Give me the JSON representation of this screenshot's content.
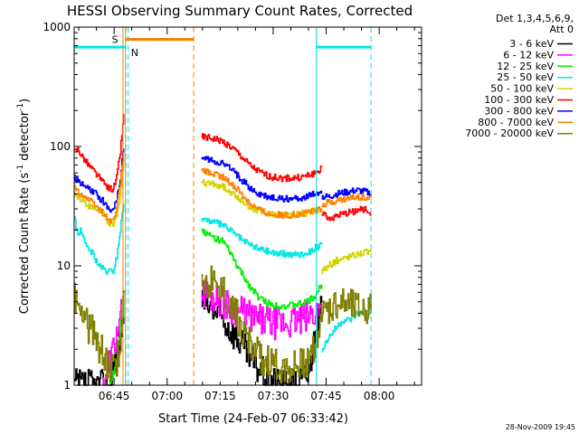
{
  "chart_data": {
    "type": "line",
    "title": "HESSI Observing Summary Count Rates, Corrected",
    "xlabel": "Start Time (24-Feb-07 06:33:42)",
    "ylabel_main": "Corrected Count Rate (s",
    "ylabel_sup1": "-1",
    "ylabel_mid": " detector",
    "ylabel_sup2": "-1",
    "ylabel_end": ")",
    "yscale": "log",
    "ylim": [
      1,
      1000
    ],
    "xlim": [
      "06:33:42",
      "08:12:00"
    ],
    "xtick_labels": [
      "06:45",
      "07:00",
      "07:15",
      "07:30",
      "07:45",
      "08:00"
    ],
    "xtick_minutes": [
      11.3,
      26.3,
      41.3,
      56.3,
      71.3,
      86.3
    ],
    "ytick_labels": [
      "1",
      "10",
      "100",
      "1000"
    ],
    "ytick_values": [
      1,
      10,
      100,
      1000
    ],
    "grid": false,
    "legend_position": "right",
    "legend_header": [
      "Det 1,3,4,5,6,9,",
      "Att 0"
    ],
    "footer_stamp": "28-Nov-2009 19:45",
    "annotations": {
      "saa_label": "S",
      "night_label": "N"
    },
    "bars": [
      {
        "label": "S",
        "start_min": 0.0,
        "end_min": 14.5,
        "level": 680,
        "color": "#00e6e6"
      },
      {
        "label": "S",
        "start_min": 14.5,
        "end_min": 34.0,
        "level": 790,
        "color": "#ff7f00"
      },
      {
        "label": "N",
        "start_min": 68.5,
        "end_min": 84.0,
        "level": 680,
        "color": "#00e6e6"
      }
    ],
    "markers": [
      {
        "minute": 13.8,
        "style": "solid",
        "color": "#ff7f00"
      },
      {
        "minute": 14.6,
        "style": "dashed",
        "color": "#ff7f00"
      },
      {
        "minute": 14.5,
        "style": "solid",
        "color": "#00e6e6"
      },
      {
        "minute": 15.3,
        "style": "dashed",
        "color": "#00e6e6"
      },
      {
        "minute": 33.8,
        "style": "dashed",
        "color": "#ff7f00"
      },
      {
        "minute": 68.5,
        "style": "solid",
        "color": "#00e6e6"
      },
      {
        "minute": 84.0,
        "style": "dashed",
        "color": "#00e6e6"
      }
    ],
    "series": [
      {
        "name": "3 - 6 keV",
        "color": "#000000",
        "segments": [
          {
            "x": [
              0,
              5,
              10,
              13,
              14
            ],
            "y": [
              1,
              1,
              1,
              2.5,
              4.5
            ]
          },
          {
            "x": [
              36,
              38,
              42,
              46,
              50,
              54,
              58,
              62,
              66,
              68,
              70
            ],
            "y": [
              5,
              4.5,
              3.5,
              2.5,
              1.6,
              1.2,
              1,
              1,
              1.2,
              2.5,
              4.5
            ]
          }
        ]
      },
      {
        "name": "6 - 12 keV",
        "color": "#ff00ff",
        "segments": [
          {
            "x": [
              8,
              11,
              13,
              14
            ],
            "y": [
              1,
              2,
              3.5,
              5
            ]
          },
          {
            "x": [
              36,
              40,
              44,
              48,
              52,
              56,
              60,
              64,
              68,
              70
            ],
            "y": [
              6,
              5.5,
              4.5,
              4,
              3.5,
              3.3,
              3.3,
              3.5,
              4,
              4.5
            ]
          }
        ]
      },
      {
        "name": "12 - 25 keV",
        "color": "#00ee00",
        "segments": [
          {
            "x": [
              10,
              12,
              13,
              14
            ],
            "y": [
              1,
              1.5,
              3,
              6
            ]
          },
          {
            "x": [
              36,
              38,
              40,
              42,
              44,
              46,
              48,
              50,
              52,
              54,
              56,
              60,
              64,
              66,
              68,
              70
            ],
            "y": [
              20,
              18,
              17,
              16,
              13,
              10,
              8,
              6.5,
              5.5,
              5,
              4.7,
              4.6,
              4.8,
              5,
              5.5,
              7
            ]
          }
        ]
      },
      {
        "name": "25 - 50 keV",
        "color": "#00e6e6",
        "segments": [
          {
            "x": [
              0,
              1,
              2,
              3,
              5,
              7,
              9,
              11,
              12,
              13,
              14
            ],
            "y": [
              25,
              18,
              20,
              15,
              13,
              10,
              9,
              9,
              12,
              20,
              35
            ]
          },
          {
            "x": [
              36,
              38,
              40,
              42,
              44,
              46,
              48,
              50,
              52,
              54,
              56,
              60,
              64,
              66,
              68,
              70
            ],
            "y": [
              25,
              24,
              23,
              22,
              20,
              18,
              16,
              15,
              14,
              13.5,
              13,
              12.5,
              12.5,
              13,
              14,
              15
            ]
          },
          {
            "x": [
              70,
              72,
              74,
              76,
              78,
              80,
              82,
              84
            ],
            "y": [
              2,
              2.5,
              3,
              3.5,
              3.5,
              4,
              4,
              4
            ]
          }
        ]
      },
      {
        "name": "50 - 100 keV",
        "color": "#d2d200",
        "segments": [
          {
            "x": [
              0,
              1,
              2,
              4,
              6,
              8,
              10,
              11,
              12,
              13,
              14
            ],
            "y": [
              40,
              38,
              36,
              32,
              30,
              28,
              22,
              22,
              26,
              40,
              75
            ]
          },
          {
            "x": [
              36,
              38,
              40,
              42,
              44,
              46,
              48,
              50,
              52,
              54,
              56,
              60,
              64,
              66,
              68,
              70
            ],
            "y": [
              50,
              49,
              48,
              46,
              42,
              38,
              34,
              31,
              29,
              28,
              27,
              26.5,
              27,
              28,
              29,
              30
            ]
          },
          {
            "x": [
              70,
              72,
              74,
              76,
              78,
              80,
              82,
              84
            ],
            "y": [
              9,
              10,
              11,
              11.5,
              12,
              12.5,
              13,
              13
            ]
          }
        ]
      },
      {
        "name": "100 - 300 keV",
        "color": "#ff0000",
        "segments": [
          {
            "x": [
              0,
              1,
              2,
              4,
              6,
              8,
              10,
              11,
              12,
              13,
              14
            ],
            "y": [
              90,
              95,
              85,
              70,
              60,
              50,
              44,
              44,
              55,
              90,
              180
            ]
          },
          {
            "x": [
              36,
              38,
              40,
              42,
              44,
              46,
              48,
              50,
              52,
              54,
              56,
              60,
              64,
              66,
              68,
              70
            ],
            "y": [
              120,
              118,
              115,
              110,
              100,
              90,
              78,
              68,
              62,
              58,
              55,
              54,
              55,
              57,
              60,
              65
            ]
          },
          {
            "x": [
              70,
              72,
              74,
              76,
              78,
              80,
              82,
              84
            ],
            "y": [
              28,
              25,
              26,
              27,
              28,
              29,
              30,
              28
            ]
          }
        ]
      },
      {
        "name": "300 - 800 keV",
        "color": "#0000ff",
        "segments": [
          {
            "x": [
              0,
              1,
              2,
              4,
              6,
              8,
              10,
              11,
              12,
              13,
              14
            ],
            "y": [
              55,
              52,
              48,
              44,
              40,
              35,
              30,
              30,
              36,
              55,
              100
            ]
          },
          {
            "x": [
              36,
              38,
              40,
              42,
              44,
              46,
              48,
              50,
              52,
              54,
              56,
              60,
              64,
              66,
              68,
              70
            ],
            "y": [
              80,
              78,
              75,
              72,
              66,
              58,
              50,
              44,
              40,
              38,
              37,
              36.5,
              37,
              38,
              40,
              42
            ]
          },
          {
            "x": [
              70,
              72,
              74,
              76,
              78,
              80,
              82,
              84
            ],
            "y": [
              38,
              38,
              40,
              41,
              42,
              43,
              42,
              40
            ]
          }
        ]
      },
      {
        "name": "800 - 7000 keV",
        "color": "#ff7f00",
        "segments": [
          {
            "x": [
              0,
              1,
              2,
              4,
              6,
              8,
              10,
              11,
              12,
              13,
              14
            ],
            "y": [
              45,
              42,
              40,
              36,
              32,
              28,
              24,
              24,
              30,
              50,
              90
            ]
          },
          {
            "x": [
              36,
              38,
              40,
              42,
              44,
              46,
              48,
              50,
              52,
              54,
              56,
              60,
              64,
              66,
              68,
              70
            ],
            "y": [
              62,
              60,
              58,
              55,
              50,
              44,
              38,
              33,
              30,
              28,
              27,
              26.5,
              27,
              28,
              29,
              30
            ]
          },
          {
            "x": [
              70,
              72,
              74,
              76,
              78,
              80,
              82,
              84
            ],
            "y": [
              33,
              34,
              35,
              36,
              37,
              38,
              38,
              37
            ]
          }
        ]
      },
      {
        "name": "7000 - 20000 keV",
        "color": "#808000",
        "segments": [
          {
            "x": [
              0,
              1,
              2,
              3,
              4,
              5,
              6,
              7,
              8,
              9,
              10,
              11,
              12,
              13,
              14
            ],
            "y": [
              5.5,
              5,
              4,
              3.5,
              3,
              3,
              2.5,
              2,
              2,
              1.5,
              1.4,
              1.3,
              1.5,
              2.5,
              4.5
            ]
          },
          {
            "x": [
              36,
              38,
              40,
              42,
              44,
              46,
              48,
              50,
              52,
              54,
              56,
              58,
              60,
              62,
              64,
              66,
              68,
              70
            ],
            "y": [
              8,
              7.5,
              7,
              6.5,
              5,
              3.8,
              2.8,
              2.2,
              1.8,
              1.6,
              1.5,
              1.4,
              1.4,
              1.4,
              1.5,
              1.6,
              2.2,
              3.5
            ]
          },
          {
            "x": [
              70,
              72,
              74,
              76,
              78,
              80,
              82,
              84
            ],
            "y": [
              4,
              4.5,
              5,
              5,
              4.8,
              4.5,
              4.5,
              4.5
            ]
          }
        ]
      }
    ]
  }
}
